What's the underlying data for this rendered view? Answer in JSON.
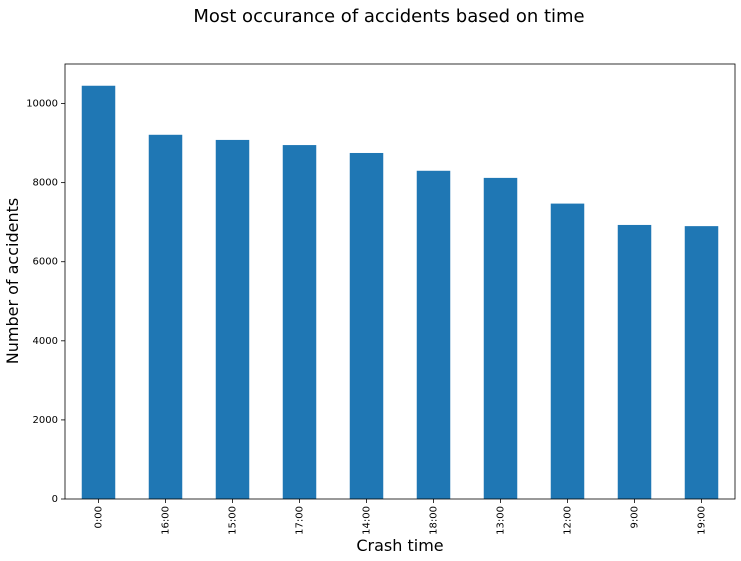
{
  "chart_data": {
    "type": "bar",
    "title": "Most occurance of accidents based on time",
    "xlabel": "Crash time",
    "ylabel": "Number of accidents",
    "categories": [
      "0:00",
      "16:00",
      "15:00",
      "17:00",
      "14:00",
      "18:00",
      "13:00",
      "12:00",
      "9:00",
      "19:00"
    ],
    "values": [
      10450,
      9210,
      9080,
      8950,
      8750,
      8300,
      8120,
      7470,
      6930,
      6900
    ],
    "ylim": [
      0,
      11000
    ],
    "yticks": [
      0,
      2000,
      4000,
      6000,
      8000,
      10000
    ],
    "bar_color": "#1f77b4",
    "grid": false,
    "legend": "none"
  }
}
